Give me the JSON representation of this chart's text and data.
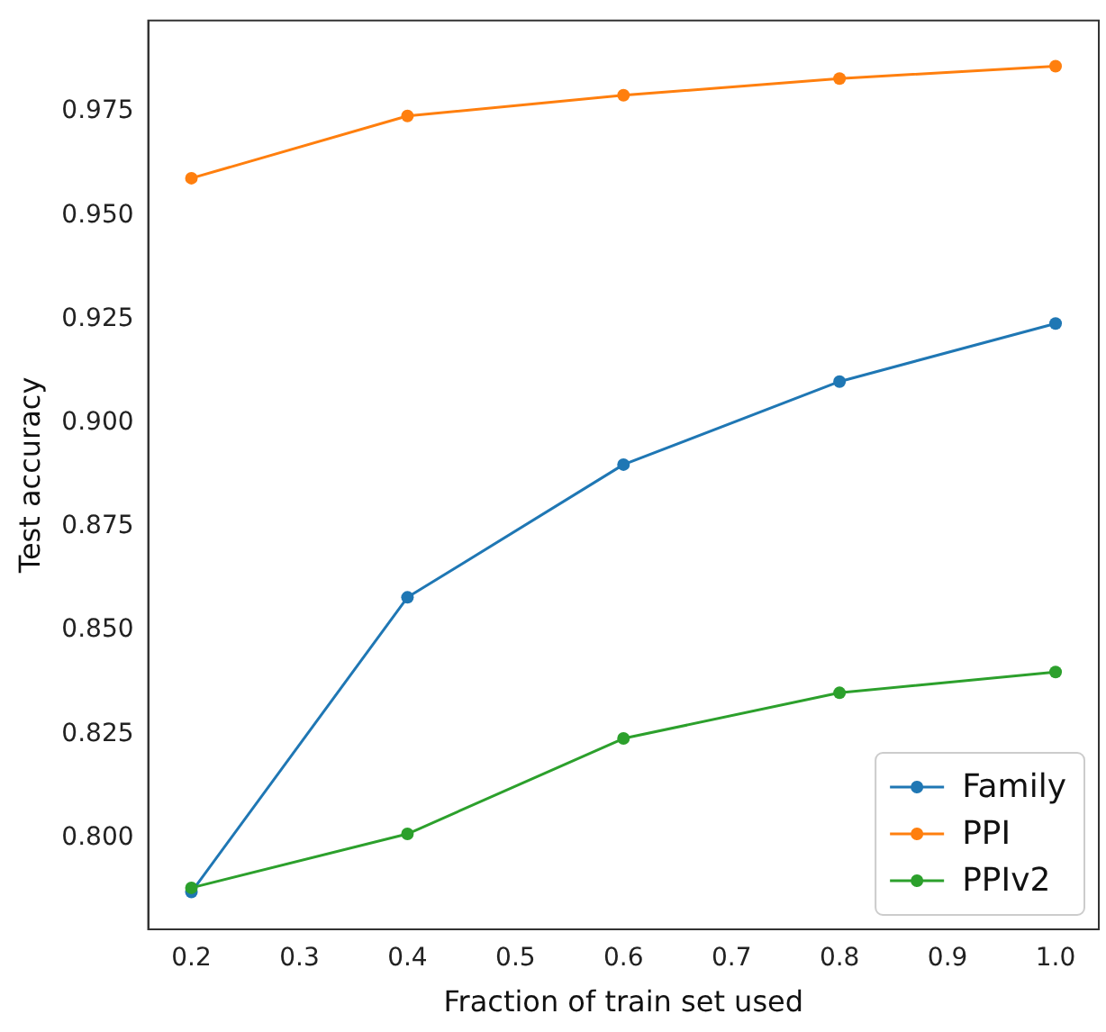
{
  "chart_data": {
    "type": "line",
    "xlabel": "Fraction of train set used",
    "ylabel": "Test accuracy",
    "x": [
      0.2,
      0.4,
      0.6,
      0.8,
      1.0
    ],
    "series": [
      {
        "name": "Family",
        "color": "#1f77b4",
        "values": [
          0.787,
          0.858,
          0.89,
          0.91,
          0.924
        ]
      },
      {
        "name": "PPI",
        "color": "#ff7f0e",
        "values": [
          0.959,
          0.974,
          0.979,
          0.983,
          0.986
        ]
      },
      {
        "name": "PPIv2",
        "color": "#2ca02c",
        "values": [
          0.788,
          0.801,
          0.824,
          0.835,
          0.84
        ]
      }
    ],
    "xlim": [
      0.16,
      1.04
    ],
    "xticks": [
      {
        "value": 0.2,
        "label": "0.2"
      },
      {
        "value": 0.3,
        "label": "0.3"
      },
      {
        "value": 0.4,
        "label": "0.4"
      },
      {
        "value": 0.5,
        "label": "0.5"
      },
      {
        "value": 0.6,
        "label": "0.6"
      },
      {
        "value": 0.7,
        "label": "0.7"
      },
      {
        "value": 0.8,
        "label": "0.8"
      },
      {
        "value": 0.9,
        "label": "0.9"
      },
      {
        "value": 1.0,
        "label": "1.0"
      }
    ],
    "ylim": [
      0.778,
      0.997
    ],
    "yticks": [
      {
        "value": 0.8,
        "label": "0.800"
      },
      {
        "value": 0.825,
        "label": "0.825"
      },
      {
        "value": 0.85,
        "label": "0.850"
      },
      {
        "value": 0.875,
        "label": "0.875"
      },
      {
        "value": 0.9,
        "label": "0.900"
      },
      {
        "value": 0.925,
        "label": "0.925"
      },
      {
        "value": 0.95,
        "label": "0.950"
      },
      {
        "value": 0.975,
        "label": "0.975"
      }
    ],
    "legend": "bottom right",
    "marker": "circle",
    "line_style": "solid",
    "grid": false
  }
}
